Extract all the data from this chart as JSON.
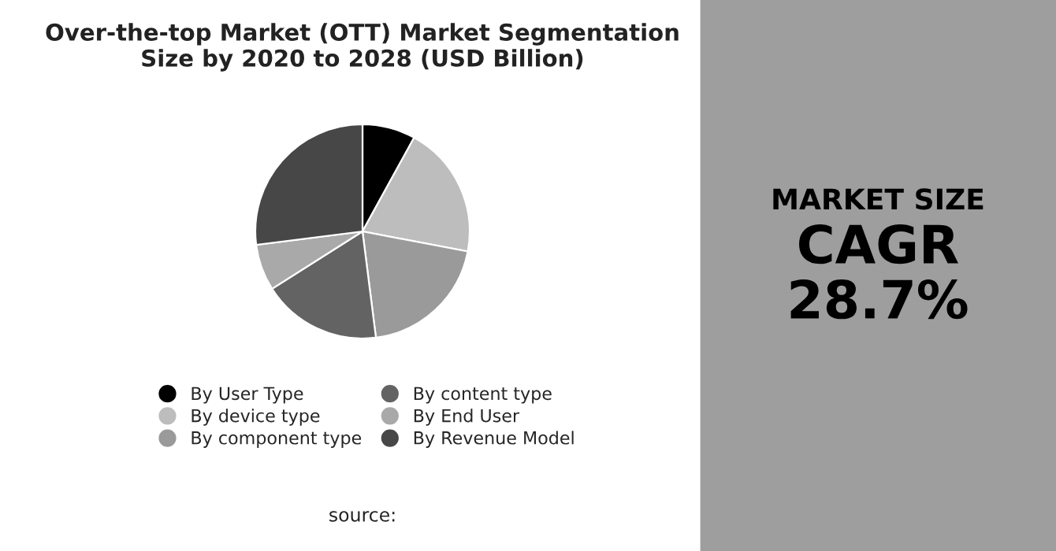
{
  "chart_data": [
    {
      "type": "pie",
      "title": "Over-the-top Market (OTT) Market Segmentation\nSize by 2020 to 2028 (USD Billion)",
      "categories": [
        "By User Type",
        "By device type",
        "By component type",
        "By content type",
        "By End User",
        "By Revenue Model"
      ],
      "values": [
        8,
        20,
        20,
        18,
        7,
        27
      ],
      "colors": [
        "#000000",
        "#bdbdbd",
        "#9a9a9a",
        "#636363",
        "#a9a9a9",
        "#474747"
      ],
      "legend": "bottom",
      "annotations": [
        "source:"
      ]
    },
    {
      "type": "other",
      "title": "MARKET SIZE",
      "subtitle": "CAGR",
      "annotations": [
        "28.7%"
      ]
    }
  ]
}
